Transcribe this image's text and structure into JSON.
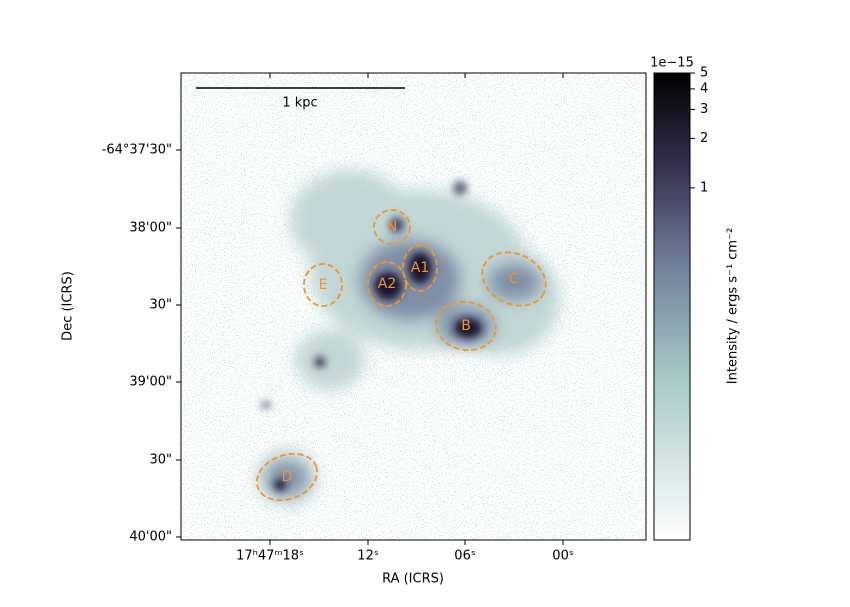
{
  "figure": {
    "xlabel": "RA (ICRS)",
    "ylabel": "Dec (ICRS)",
    "xticks": [
      "17ʰ47ᵐ18ˢ",
      "12ˢ",
      "06ˢ",
      "00ˢ"
    ],
    "yticks": [
      "-64°37'30\"",
      "38'00\"",
      "30\"",
      "39'00\"",
      "30\"",
      "40'00\""
    ],
    "scalebar": "1 kpc",
    "regions": [
      "N",
      "A1",
      "A2",
      "E",
      "C",
      "B",
      "D"
    ],
    "colorbar": {
      "label": "Intensity / ergs s⁻¹ cm⁻²",
      "offset": "1e−15",
      "log": true,
      "lim": [
        0.0072,
        5
      ],
      "ticks": [
        1,
        2,
        3,
        4,
        5
      ]
    }
  }
}
